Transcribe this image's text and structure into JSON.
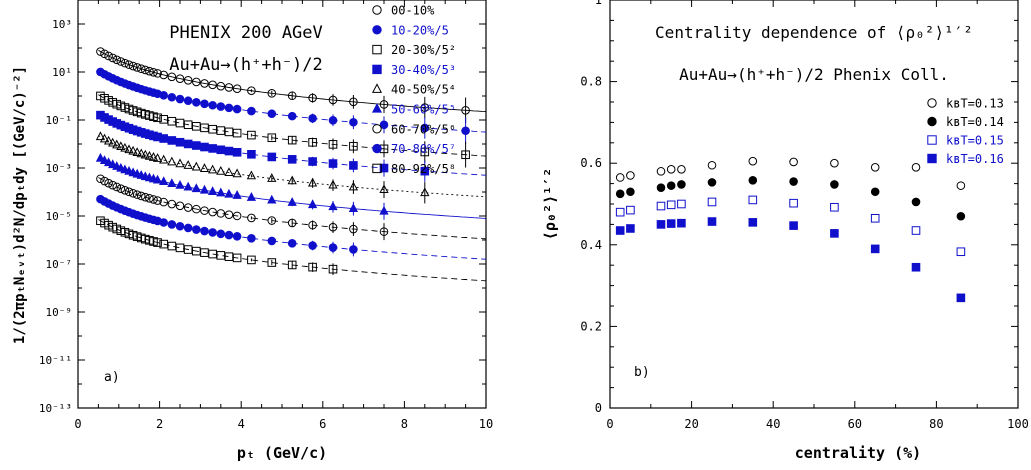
{
  "chart_data": [
    {
      "type": "scatter",
      "panel_label": "a)",
      "title_lines": [
        "PHENIX 200 AGeV",
        "Au+Au→(h⁺+h⁻)/2"
      ],
      "xlabel": "pₜ (GeV/c)",
      "ylabel": "1/(2πpₜNₑᵥₜ)d²N/dpₜdy [(GeV/c)⁻²]",
      "x_ticks": [
        "0",
        "2",
        "4",
        "6",
        "8",
        "10"
      ],
      "y_ticks": [
        "10³",
        "10¹",
        "10⁻¹",
        "10⁻³",
        "10⁻⁵",
        "10⁻⁷",
        "10⁻⁹",
        "10⁻¹¹",
        "10⁻¹³"
      ],
      "xlim": [
        0,
        10
      ],
      "ylim_log10": [
        -13,
        4
      ],
      "x": [
        0.55,
        0.65,
        0.75,
        0.85,
        0.95,
        1.05,
        1.15,
        1.25,
        1.35,
        1.45,
        1.55,
        1.65,
        1.75,
        1.85,
        1.95,
        2.1,
        2.3,
        2.5,
        2.7,
        2.9,
        3.1,
        3.3,
        3.5,
        3.7,
        3.9,
        4.25,
        4.75,
        5.25,
        5.75,
        6.25,
        6.75,
        7.5,
        8.5,
        9.5
      ],
      "series": [
        {
          "name": "00-10%",
          "marker": "circle-open",
          "color": "#000000",
          "fit_style": "solid",
          "start_log10": 1.9,
          "end_x": 9.5
        },
        {
          "name": "10-20%/5",
          "marker": "circle-filled",
          "color": "#1010cc",
          "fit_style": "dash",
          "start_log10": 1.05,
          "end_x": 9.5
        },
        {
          "name": "20-30%/5²",
          "marker": "square-open",
          "color": "#000000",
          "fit_style": "dash",
          "start_log10": 0.05,
          "end_x": 9.5
        },
        {
          "name": "30-40%/5³",
          "marker": "square-filled",
          "color": "#1010cc",
          "fit_style": "dash",
          "start_log10": -0.75,
          "end_x": 8.5
        },
        {
          "name": "40-50%/5⁴",
          "marker": "triangle-open",
          "color": "#000000",
          "fit_style": "dot",
          "start_log10": -1.65,
          "end_x": 8.5
        },
        {
          "name": "50-60%/5⁵",
          "marker": "triangle-filled",
          "color": "#1010cc",
          "fit_style": "solid",
          "start_log10": -2.55,
          "end_x": 7.5
        },
        {
          "name": "60-70%/5⁶",
          "marker": "circle-open",
          "color": "#000000",
          "fit_style": "dash",
          "start_log10": -3.4,
          "end_x": 7.5
        },
        {
          "name": "70-80%/5⁷",
          "marker": "circle-filled",
          "color": "#1010cc",
          "fit_style": "dash",
          "start_log10": -4.25,
          "end_x": 6.75
        },
        {
          "name": "80-92%/5⁸",
          "marker": "square-open",
          "color": "#000000",
          "fit_style": "dash",
          "start_log10": -5.15,
          "end_x": 6.25
        }
      ]
    },
    {
      "type": "scatter",
      "panel_label": "b)",
      "title_lines": [
        "Centrality dependence of ⟨ρ₀²⟩¹′²",
        "Au+Au→(h⁺+h⁻)/2 Phenix Coll."
      ],
      "xlabel": "centrality (%)",
      "ylabel": "⟨ρ₀²⟩¹′²",
      "x_ticks": [
        "0",
        "20",
        "40",
        "60",
        "80",
        "100"
      ],
      "y_ticks": [
        "0",
        "0.2",
        "0.4",
        "0.6",
        "0.8",
        "1"
      ],
      "xlim": [
        0,
        100
      ],
      "ylim": [
        0,
        1
      ],
      "x": [
        2.5,
        5,
        12.5,
        15,
        17.5,
        25,
        35,
        45,
        55,
        65,
        75,
        86
      ],
      "series": [
        {
          "name": "kʙT=0.13",
          "marker": "circle-open",
          "color": "#000000",
          "values": [
            0.565,
            0.57,
            0.58,
            0.585,
            0.585,
            0.595,
            0.605,
            0.603,
            0.6,
            0.59,
            0.59,
            0.545
          ]
        },
        {
          "name": "kʙT=0.14",
          "marker": "circle-filled",
          "color": "#000000",
          "values": [
            0.525,
            0.53,
            0.54,
            0.545,
            0.548,
            0.553,
            0.558,
            0.555,
            0.548,
            0.53,
            0.505,
            0.47
          ]
        },
        {
          "name": "kʙT=0.15",
          "marker": "square-open",
          "color": "#1010cc",
          "values": [
            0.48,
            0.485,
            0.495,
            0.498,
            0.5,
            0.505,
            0.51,
            0.502,
            0.492,
            0.465,
            0.435,
            0.383
          ]
        },
        {
          "name": "kʙT=0.16",
          "marker": "square-filled",
          "color": "#1010cc",
          "values": [
            0.435,
            0.44,
            0.45,
            0.452,
            0.453,
            0.457,
            0.455,
            0.447,
            0.428,
            0.39,
            0.345,
            0.27
          ]
        }
      ]
    }
  ]
}
